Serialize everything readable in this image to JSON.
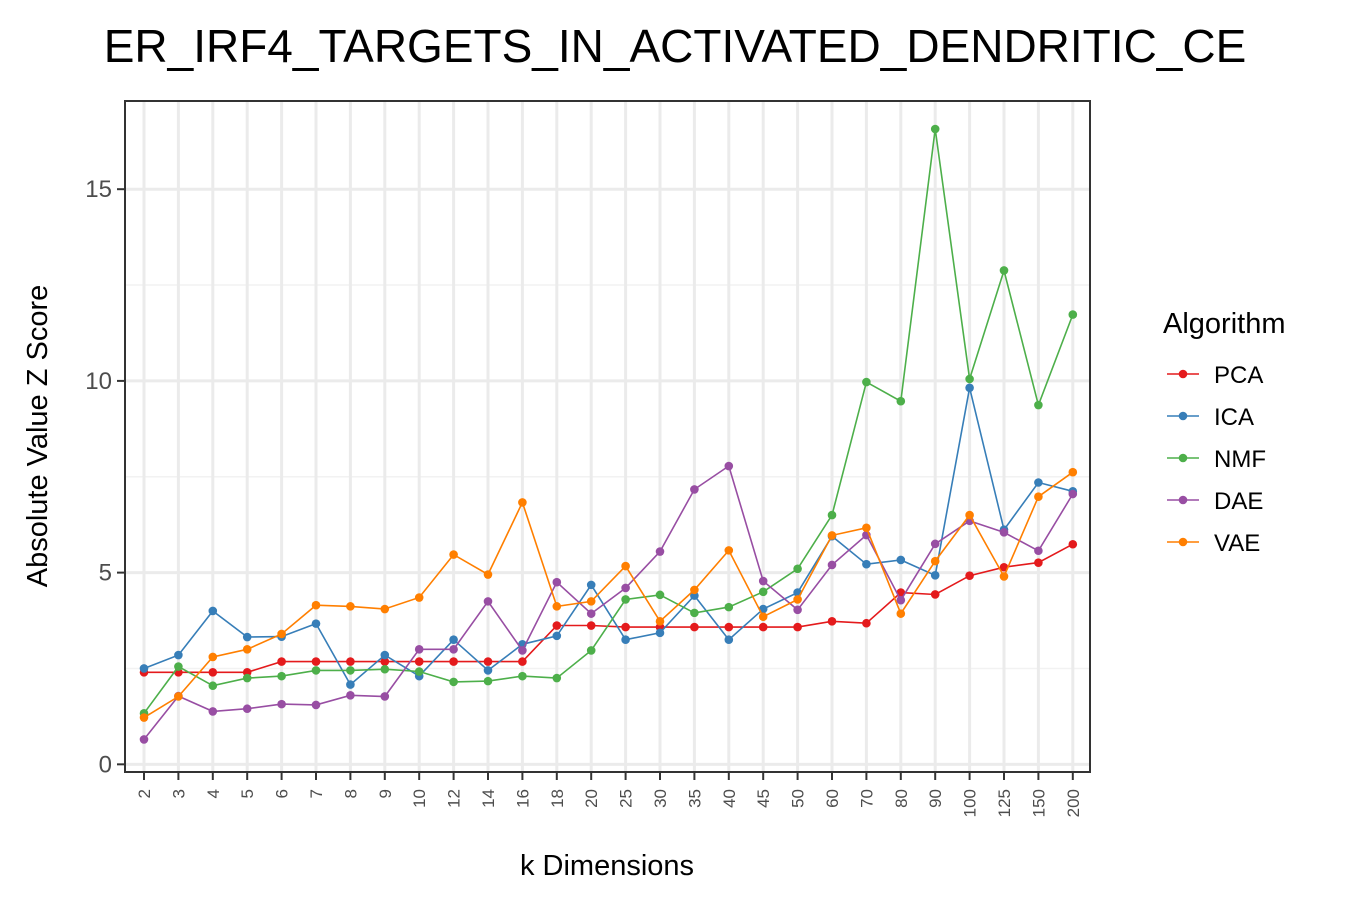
{
  "chart_data": {
    "type": "line",
    "title": "ER_IRF4_TARGETS_IN_ACTIVATED_DENDRITIC_CE",
    "xlabel": "k Dimensions",
    "ylabel": "Absolute Value Z Score",
    "ylim": [
      -0.2,
      17.3
    ],
    "yticks": [
      0,
      5,
      10,
      15
    ],
    "grid": true,
    "legend_title": "Algorithm",
    "legend_position": "right",
    "categories": [
      "2",
      "3",
      "4",
      "5",
      "6",
      "7",
      "8",
      "9",
      "10",
      "12",
      "14",
      "16",
      "18",
      "20",
      "25",
      "30",
      "35",
      "40",
      "45",
      "50",
      "60",
      "70",
      "80",
      "90",
      "100",
      "125",
      "150",
      "200"
    ],
    "series": [
      {
        "name": "PCA",
        "color": "#e41a1c",
        "values": [
          2.4,
          2.4,
          2.4,
          2.4,
          2.68,
          2.68,
          2.68,
          2.68,
          2.68,
          2.68,
          2.68,
          2.68,
          3.62,
          3.62,
          3.58,
          3.58,
          3.58,
          3.58,
          3.58,
          3.58,
          3.73,
          3.68,
          4.48,
          4.43,
          4.92,
          5.14,
          5.26,
          5.74
        ]
      },
      {
        "name": "ICA",
        "color": "#377eb8",
        "values": [
          2.5,
          2.85,
          4.0,
          3.32,
          3.33,
          3.67,
          2.08,
          2.85,
          2.3,
          3.25,
          2.45,
          3.13,
          3.35,
          4.68,
          3.25,
          3.43,
          4.4,
          3.25,
          4.05,
          4.48,
          5.95,
          5.22,
          5.33,
          4.93,
          9.82,
          6.12,
          7.35,
          7.12
        ]
      },
      {
        "name": "NMF",
        "color": "#4daf4a",
        "values": [
          1.33,
          2.55,
          2.05,
          2.25,
          2.3,
          2.45,
          2.45,
          2.48,
          2.42,
          2.15,
          2.17,
          2.3,
          2.25,
          2.97,
          4.3,
          4.42,
          3.95,
          4.1,
          4.5,
          5.1,
          6.5,
          9.97,
          9.47,
          16.57,
          10.05,
          12.88,
          9.37,
          11.73
        ]
      },
      {
        "name": "DAE",
        "color": "#984ea3",
        "values": [
          0.65,
          1.78,
          1.38,
          1.45,
          1.57,
          1.55,
          1.8,
          1.77,
          3.0,
          3.0,
          4.25,
          2.97,
          4.75,
          3.93,
          4.6,
          5.55,
          7.17,
          7.78,
          4.78,
          4.03,
          5.2,
          5.98,
          4.28,
          5.75,
          6.35,
          6.05,
          5.57,
          7.05
        ]
      },
      {
        "name": "VAE",
        "color": "#ff7f00",
        "values": [
          1.22,
          1.77,
          2.8,
          3.0,
          3.4,
          4.15,
          4.12,
          4.05,
          4.35,
          5.47,
          4.95,
          6.83,
          4.12,
          4.25,
          5.17,
          3.73,
          4.55,
          5.58,
          3.85,
          4.3,
          5.97,
          6.17,
          3.93,
          5.3,
          6.5,
          4.9,
          6.98,
          7.62
        ]
      }
    ]
  }
}
